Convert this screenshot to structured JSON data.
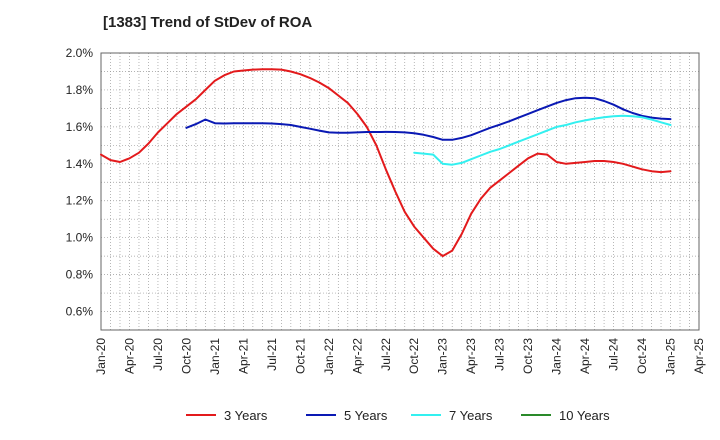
{
  "chart_data": {
    "type": "line",
    "title": "[1383]  Trend of StDev of ROA",
    "xlabel": "",
    "ylabel": "",
    "ylim": [
      0.5,
      2.0
    ],
    "y_ticks": [
      "2.0%",
      "1.8%",
      "1.6%",
      "1.4%",
      "1.2%",
      "1.0%",
      "0.8%",
      "0.6%"
    ],
    "y_tick_values": [
      2.0,
      1.8,
      1.6,
      1.4,
      1.2,
      1.0,
      0.8,
      0.6
    ],
    "x_ticks": [
      "Jan-20",
      "Apr-20",
      "Jul-20",
      "Oct-20",
      "Jan-21",
      "Apr-21",
      "Jul-21",
      "Oct-21",
      "Jan-22",
      "Apr-22",
      "Jul-22",
      "Oct-22",
      "Jan-23",
      "Apr-23",
      "Jul-23",
      "Oct-23",
      "Jan-24",
      "Apr-24",
      "Jul-24",
      "Oct-24",
      "Jan-25",
      "Apr-25"
    ],
    "grid": true,
    "legend_position": "bottom",
    "series": [
      {
        "name": "3 Years",
        "color": "#e31a1c",
        "x": [
          "2020-01",
          "2020-02",
          "2020-03",
          "2020-04",
          "2020-05",
          "2020-06",
          "2020-07",
          "2020-08",
          "2020-09",
          "2020-10",
          "2020-11",
          "2020-12",
          "2021-01",
          "2021-02",
          "2021-03",
          "2021-04",
          "2021-05",
          "2021-06",
          "2021-07",
          "2021-08",
          "2021-09",
          "2021-10",
          "2021-11",
          "2021-12",
          "2022-01",
          "2022-02",
          "2022-03",
          "2022-04",
          "2022-05",
          "2022-06",
          "2022-07",
          "2022-08",
          "2022-09",
          "2022-10",
          "2022-11",
          "2022-12",
          "2023-01",
          "2023-02",
          "2023-03",
          "2023-04",
          "2023-05",
          "2023-06",
          "2023-07",
          "2023-08",
          "2023-09",
          "2023-10",
          "2023-11",
          "2023-12",
          "2024-01",
          "2024-02",
          "2024-03",
          "2024-04",
          "2024-05",
          "2024-06",
          "2024-07",
          "2024-08",
          "2024-09",
          "2024-10",
          "2024-11",
          "2024-12",
          "2025-01"
        ],
        "values": [
          1.45,
          1.42,
          1.41,
          1.43,
          1.46,
          1.51,
          1.57,
          1.62,
          1.67,
          1.71,
          1.75,
          1.8,
          1.85,
          1.88,
          1.9,
          1.905,
          1.91,
          1.912,
          1.912,
          1.91,
          1.9,
          1.885,
          1.865,
          1.84,
          1.81,
          1.77,
          1.73,
          1.67,
          1.6,
          1.5,
          1.37,
          1.25,
          1.14,
          1.06,
          1.0,
          0.94,
          0.9,
          0.93,
          1.02,
          1.13,
          1.21,
          1.27,
          1.31,
          1.35,
          1.39,
          1.43,
          1.455,
          1.45,
          1.41,
          1.4,
          1.405,
          1.41,
          1.415,
          1.415,
          1.41,
          1.4,
          1.385,
          1.37,
          1.36,
          1.355,
          1.36
        ]
      },
      {
        "name": "5 Years",
        "color": "#0a19b4",
        "x": [
          "2020-10",
          "2020-11",
          "2020-12",
          "2021-01",
          "2021-02",
          "2021-03",
          "2021-04",
          "2021-05",
          "2021-06",
          "2021-07",
          "2021-08",
          "2021-09",
          "2021-10",
          "2021-11",
          "2021-12",
          "2022-01",
          "2022-02",
          "2022-03",
          "2022-04",
          "2022-05",
          "2022-06",
          "2022-07",
          "2022-08",
          "2022-09",
          "2022-10",
          "2022-11",
          "2022-12",
          "2023-01",
          "2023-02",
          "2023-03",
          "2023-04",
          "2023-05",
          "2023-06",
          "2023-07",
          "2023-08",
          "2023-09",
          "2023-10",
          "2023-11",
          "2023-12",
          "2024-01",
          "2024-02",
          "2024-03",
          "2024-04",
          "2024-05",
          "2024-06",
          "2024-07",
          "2024-08",
          "2024-09",
          "2024-10",
          "2024-11",
          "2024-12",
          "2025-01"
        ],
        "values": [
          1.595,
          1.615,
          1.64,
          1.62,
          1.618,
          1.62,
          1.62,
          1.62,
          1.62,
          1.618,
          1.615,
          1.61,
          1.6,
          1.59,
          1.58,
          1.57,
          1.568,
          1.568,
          1.57,
          1.572,
          1.572,
          1.573,
          1.572,
          1.57,
          1.565,
          1.557,
          1.545,
          1.53,
          1.53,
          1.54,
          1.555,
          1.575,
          1.595,
          1.612,
          1.63,
          1.65,
          1.67,
          1.69,
          1.71,
          1.73,
          1.745,
          1.755,
          1.758,
          1.755,
          1.74,
          1.72,
          1.695,
          1.675,
          1.66,
          1.65,
          1.645,
          1.642
        ]
      },
      {
        "name": "7 Years",
        "color": "#33f0f0",
        "x": [
          "2022-10",
          "2022-11",
          "2022-12",
          "2023-01",
          "2023-02",
          "2023-03",
          "2023-04",
          "2023-05",
          "2023-06",
          "2023-07",
          "2023-08",
          "2023-09",
          "2023-10",
          "2023-11",
          "2023-12",
          "2024-01",
          "2024-02",
          "2024-03",
          "2024-04",
          "2024-05",
          "2024-06",
          "2024-07",
          "2024-08",
          "2024-09",
          "2024-10",
          "2024-11",
          "2024-12",
          "2025-01"
        ],
        "values": [
          1.46,
          1.455,
          1.45,
          1.4,
          1.395,
          1.405,
          1.425,
          1.445,
          1.465,
          1.48,
          1.5,
          1.52,
          1.54,
          1.56,
          1.58,
          1.6,
          1.61,
          1.625,
          1.635,
          1.645,
          1.652,
          1.658,
          1.66,
          1.658,
          1.652,
          1.64,
          1.625,
          1.61
        ]
      },
      {
        "name": "10 Years",
        "color": "#2a8a2a",
        "x": [],
        "values": []
      }
    ]
  }
}
